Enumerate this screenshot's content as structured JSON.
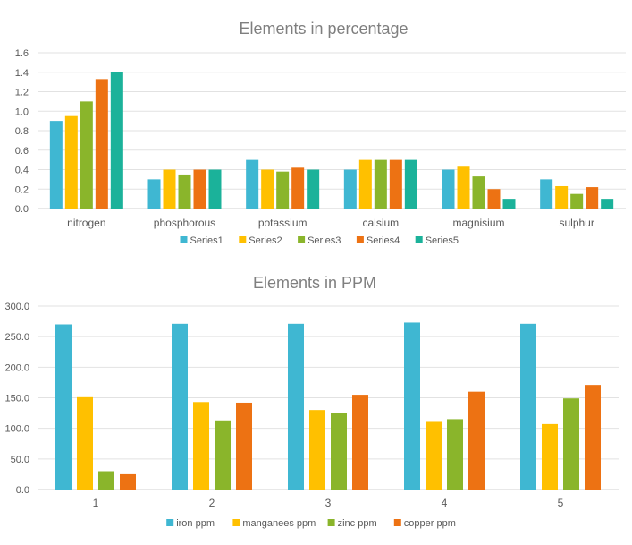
{
  "chart_data": [
    {
      "type": "bar",
      "title": "Elements in percentage",
      "categories": [
        "nitrogen",
        "phosphorous",
        "potassium",
        "calsium",
        "magnisium",
        "sulphur"
      ],
      "ylim": [
        0,
        1.6
      ],
      "yticks": [
        "0.0",
        "0.2",
        "0.4",
        "0.6",
        "0.8",
        "1.0",
        "1.2",
        "1.4",
        "1.6"
      ],
      "grid": true,
      "legend_position": "bottom",
      "series": [
        {
          "name": "Series1",
          "color": "#3fb7d2",
          "values": [
            0.9,
            0.3,
            0.5,
            0.4,
            0.4,
            0.3
          ]
        },
        {
          "name": "Series2",
          "color": "#ffc000",
          "values": [
            0.95,
            0.4,
            0.4,
            0.5,
            0.43,
            0.23
          ]
        },
        {
          "name": "Series3",
          "color": "#8ab52b",
          "values": [
            1.1,
            0.35,
            0.38,
            0.5,
            0.33,
            0.15
          ]
        },
        {
          "name": "Series4",
          "color": "#ed7213",
          "values": [
            1.33,
            0.4,
            0.42,
            0.5,
            0.2,
            0.22
          ]
        },
        {
          "name": "Series5",
          "color": "#1bb29a",
          "values": [
            1.4,
            0.4,
            0.4,
            0.5,
            0.1,
            0.1
          ]
        }
      ]
    },
    {
      "type": "bar",
      "title": "Elements in PPM",
      "categories": [
        "1",
        "2",
        "3",
        "4",
        "5"
      ],
      "ylim": [
        0,
        300
      ],
      "yticks": [
        "0.0",
        "50.0",
        "100.0",
        "150.0",
        "200.0",
        "250.0",
        "300.0"
      ],
      "grid": true,
      "legend_position": "bottom",
      "series": [
        {
          "name": "iron ppm",
          "color": "#3fb7d2",
          "values": [
            270,
            271,
            271,
            273,
            271
          ]
        },
        {
          "name": "manganees ppm",
          "color": "#ffc000",
          "values": [
            151,
            143,
            130,
            112,
            107
          ]
        },
        {
          "name": "zinc ppm",
          "color": "#8ab52b",
          "values": [
            30,
            113,
            125,
            115,
            149
          ]
        },
        {
          "name": "copper ppm",
          "color": "#ed7213",
          "values": [
            25,
            142,
            155,
            160,
            171
          ]
        }
      ]
    }
  ]
}
